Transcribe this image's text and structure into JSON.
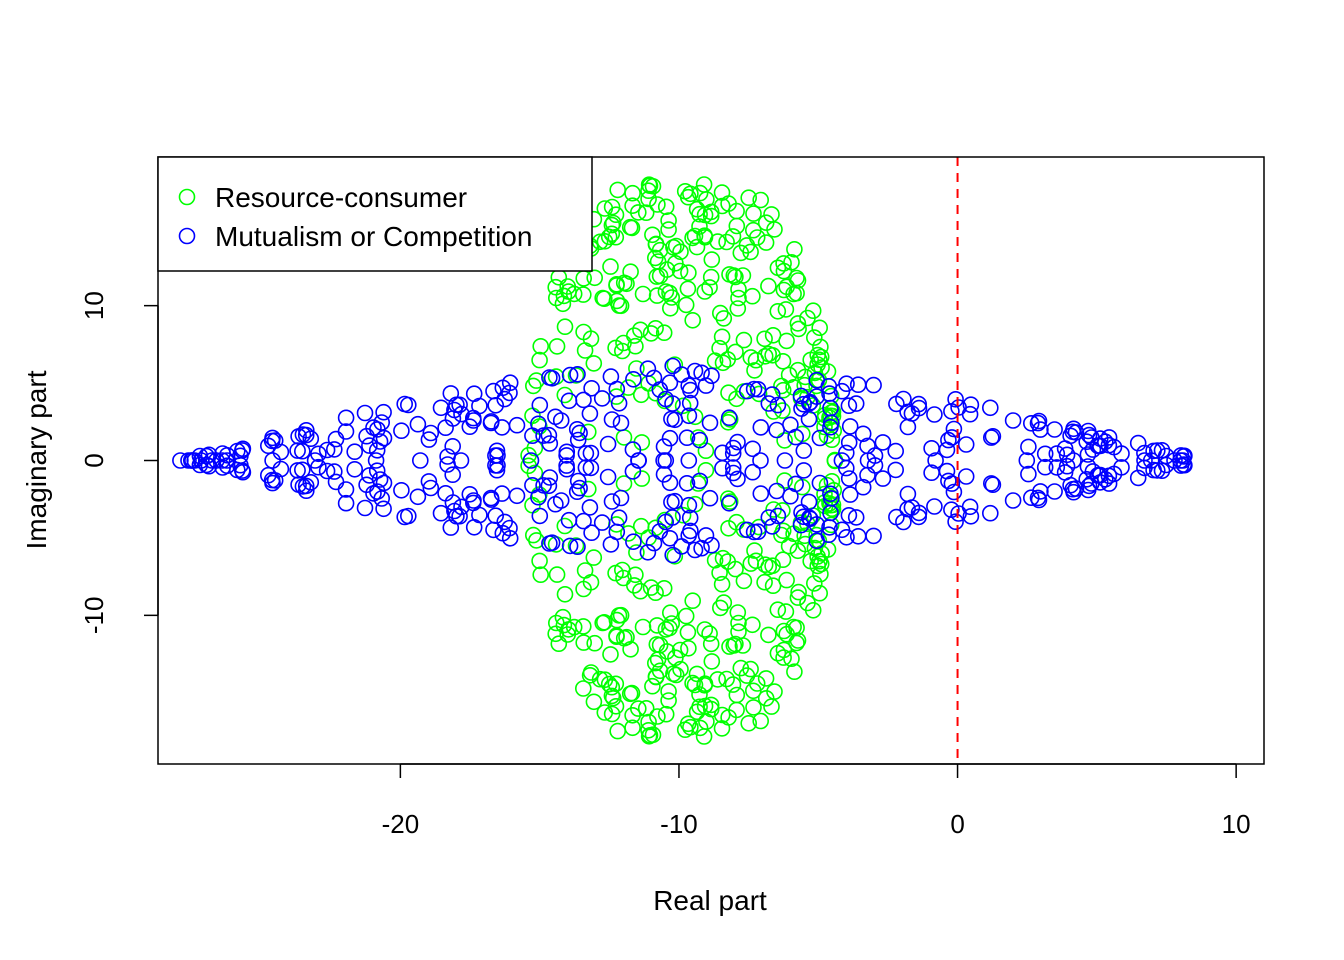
{
  "chart_data": {
    "type": "scatter",
    "xlabel": "Real part",
    "ylabel": "Imaginary part",
    "xlim": [
      -28.7,
      11.0
    ],
    "ylim": [
      -19.6,
      19.6
    ],
    "x_ticks": [
      -20,
      -10,
      0,
      10
    ],
    "y_ticks": [
      -10,
      0,
      10
    ],
    "x_tick_labels": [
      "-20",
      "-10",
      "0",
      "10"
    ],
    "y_tick_labels": [
      "-10",
      "0",
      "10"
    ],
    "grid": false,
    "legend": {
      "position": "top-left",
      "entries": [
        {
          "label": "Resource-consumer",
          "color": "#00ff00"
        },
        {
          "label": "Mutualism or Competition",
          "color": "#0000ff"
        }
      ]
    },
    "reference_line": {
      "x": 0,
      "color": "#ff0000",
      "style": "dashed"
    },
    "series": [
      {
        "name": "Resource-consumer",
        "color": "#00ff00",
        "marker": "open-circle",
        "center_real": -9.9,
        "real_half_width": 5.5,
        "imag_extent": 18.2,
        "point_count": 500
      },
      {
        "name": "Mutualism or Competition",
        "color": "#0000ff",
        "marker": "open-circle",
        "center_real": -9.6,
        "real_half_width": 18.3,
        "imag_extent": 6.2,
        "point_count": 500
      }
    ]
  }
}
